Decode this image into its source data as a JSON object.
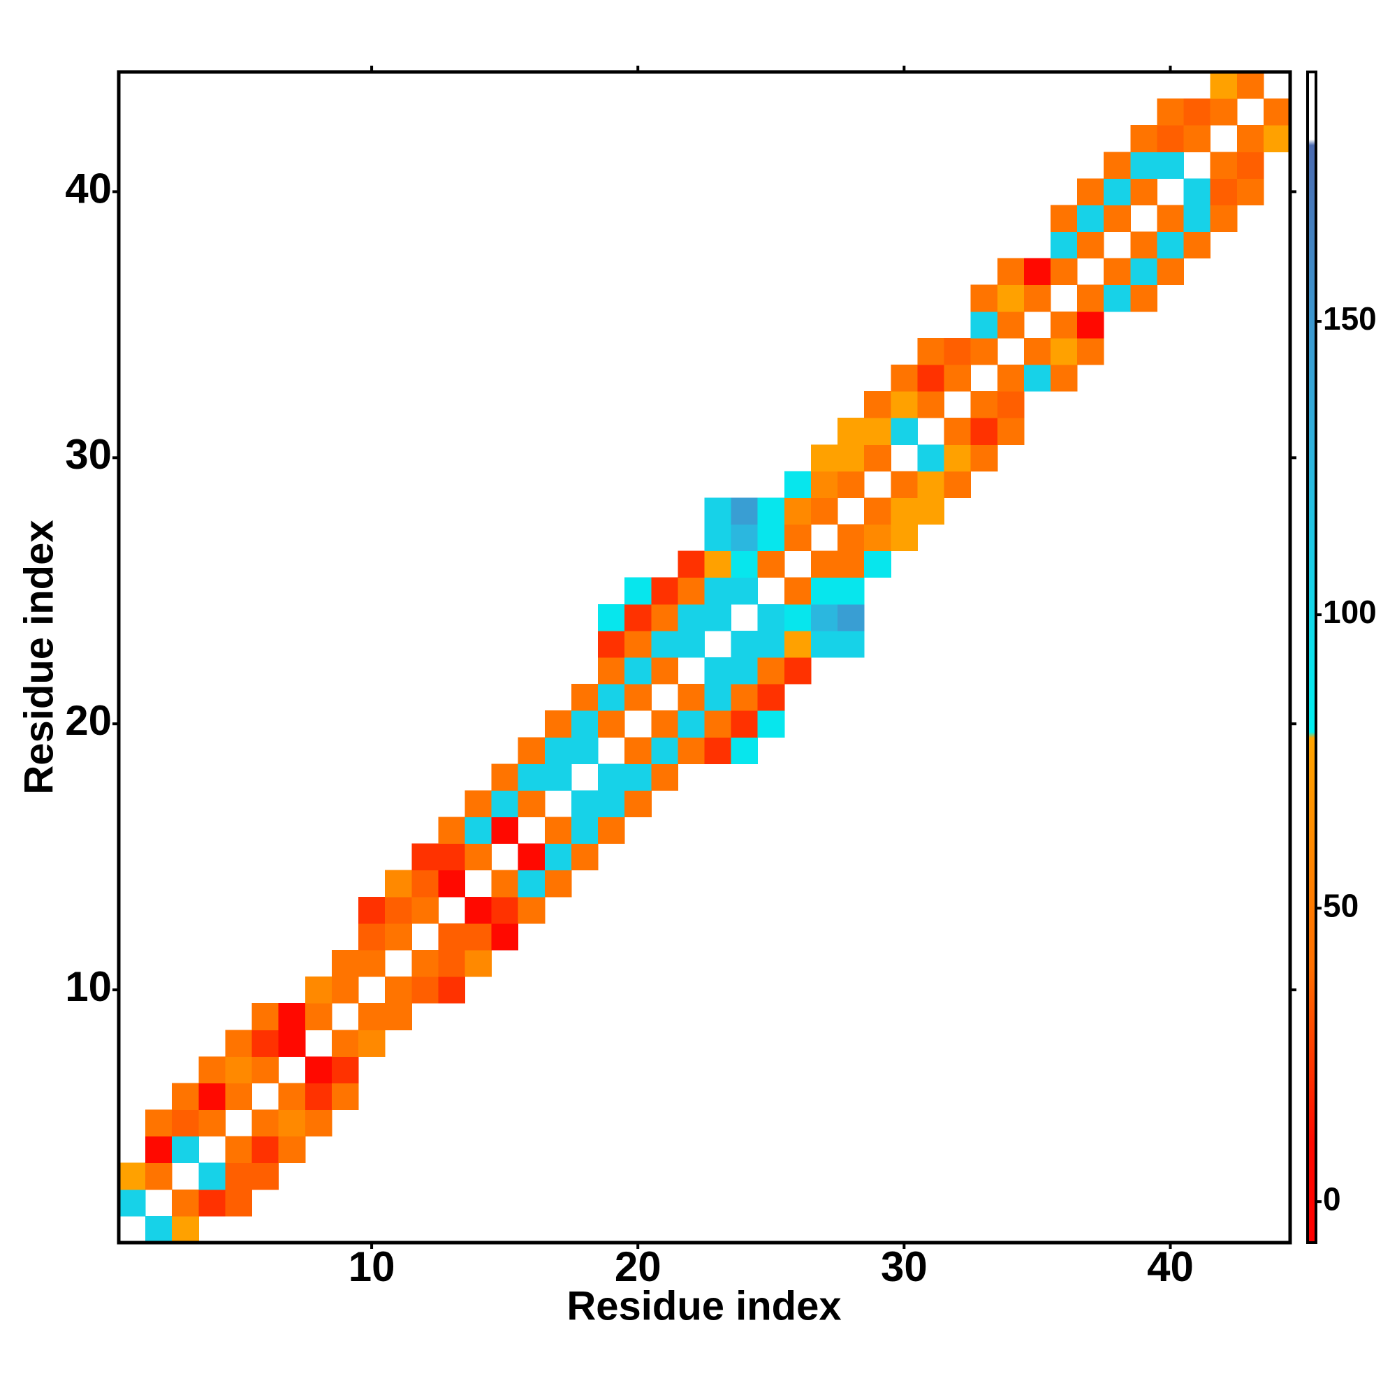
{
  "chart_data": {
    "type": "heatmap",
    "x_label": "Residue index",
    "y_label": "Residue index",
    "xlim": [
      0.5,
      44.5
    ],
    "ylim": [
      0.5,
      44.5
    ],
    "xticks": [
      10,
      20,
      30,
      40
    ],
    "yticks": [
      10,
      20,
      30,
      40
    ],
    "clim": [
      -7,
      192.5
    ],
    "cticks": [
      0,
      50,
      100,
      150
    ],
    "colorscale": [
      [
        -7,
        "#ff0000"
      ],
      [
        10,
        "#ff0a00"
      ],
      [
        25,
        "#ff3c00"
      ],
      [
        40,
        "#ff7000"
      ],
      [
        50,
        "#ff7a00"
      ],
      [
        65,
        "#ff9000"
      ],
      [
        79,
        "#ffa500"
      ],
      [
        80,
        "#00f0f0"
      ],
      [
        110,
        "#1ccce6"
      ],
      [
        130,
        "#30b0dc"
      ],
      [
        150,
        "#3c98d0"
      ],
      [
        180,
        "#4a6ab0"
      ],
      [
        181,
        "#ffffff"
      ],
      [
        192.5,
        "#ffffff"
      ]
    ],
    "rows": [
      {
        "y": 1,
        "x": [
          2,
          3
        ],
        "values": [
          105,
          76
        ]
      },
      {
        "y": 2,
        "x": [
          1,
          3,
          4,
          5
        ],
        "values": [
          105,
          44,
          22,
          35
        ]
      },
      {
        "y": 3,
        "x": [
          1,
          2,
          4,
          5,
          6
        ],
        "values": [
          76,
          44,
          105,
          35,
          35
        ]
      },
      {
        "y": 4,
        "x": [
          2,
          3,
          5,
          6,
          7
        ],
        "values": [
          8,
          105,
          44,
          22,
          44
        ]
      },
      {
        "y": 5,
        "x": [
          2,
          3,
          4,
          6,
          7,
          8
        ],
        "values": [
          44,
          35,
          44,
          44,
          60,
          44
        ]
      },
      {
        "y": 6,
        "x": [
          3,
          4,
          5,
          7,
          8,
          9
        ],
        "values": [
          44,
          8,
          44,
          44,
          22,
          44
        ]
      },
      {
        "y": 7,
        "x": [
          4,
          5,
          6,
          8,
          9
        ],
        "values": [
          44,
          60,
          44,
          8,
          22
        ]
      },
      {
        "y": 8,
        "x": [
          5,
          6,
          7,
          9,
          10
        ],
        "values": [
          44,
          22,
          8,
          44,
          60
        ]
      },
      {
        "y": 9,
        "x": [
          6,
          7,
          8,
          10,
          11
        ],
        "values": [
          44,
          8,
          44,
          44,
          44
        ]
      },
      {
        "y": 10,
        "x": [
          8,
          9,
          11,
          12,
          13
        ],
        "values": [
          60,
          44,
          44,
          35,
          22
        ]
      },
      {
        "y": 11,
        "x": [
          9,
          10,
          12,
          13,
          14
        ],
        "values": [
          44,
          44,
          44,
          35,
          60
        ]
      },
      {
        "y": 12,
        "x": [
          10,
          11,
          13,
          14,
          15
        ],
        "values": [
          35,
          44,
          35,
          35,
          8
        ]
      },
      {
        "y": 13,
        "x": [
          10,
          11,
          12,
          14,
          15,
          16
        ],
        "values": [
          22,
          35,
          44,
          8,
          22,
          44
        ]
      },
      {
        "y": 14,
        "x": [
          11,
          12,
          13,
          15,
          16,
          17
        ],
        "values": [
          60,
          35,
          8,
          44,
          105,
          44
        ]
      },
      {
        "y": 15,
        "x": [
          12,
          13,
          14,
          16,
          17,
          18
        ],
        "values": [
          22,
          22,
          44,
          8,
          105,
          44
        ]
      },
      {
        "y": 16,
        "x": [
          13,
          14,
          15,
          17,
          18,
          19
        ],
        "values": [
          44,
          105,
          8,
          44,
          105,
          44
        ]
      },
      {
        "y": 17,
        "x": [
          14,
          15,
          16,
          18,
          19,
          20
        ],
        "values": [
          44,
          105,
          44,
          105,
          105,
          44
        ]
      },
      {
        "y": 18,
        "x": [
          15,
          16,
          17,
          19,
          20,
          21
        ],
        "values": [
          44,
          105,
          105,
          105,
          105,
          44
        ]
      },
      {
        "y": 19,
        "x": [
          16,
          17,
          18,
          20,
          21,
          22,
          23,
          24
        ],
        "values": [
          44,
          105,
          105,
          44,
          105,
          44,
          22,
          88
        ]
      },
      {
        "y": 20,
        "x": [
          17,
          18,
          19,
          21,
          22,
          23,
          24,
          25
        ],
        "values": [
          44,
          105,
          44,
          44,
          105,
          44,
          22,
          88
        ]
      },
      {
        "y": 21,
        "x": [
          18,
          19,
          20,
          22,
          23,
          24,
          25
        ],
        "values": [
          44,
          105,
          44,
          44,
          105,
          44,
          22
        ]
      },
      {
        "y": 22,
        "x": [
          19,
          20,
          21,
          23,
          24,
          25,
          26
        ],
        "values": [
          44,
          105,
          44,
          105,
          105,
          44,
          22
        ]
      },
      {
        "y": 23,
        "x": [
          19,
          20,
          21,
          22,
          24,
          25,
          26,
          27,
          28
        ],
        "values": [
          22,
          44,
          105,
          105,
          105,
          105,
          76,
          105,
          105
        ]
      },
      {
        "y": 24,
        "x": [
          19,
          20,
          21,
          22,
          23,
          25,
          26,
          27,
          28
        ],
        "values": [
          88,
          22,
          44,
          105,
          105,
          105,
          88,
          125,
          145
        ]
      },
      {
        "y": 25,
        "x": [
          20,
          21,
          22,
          23,
          24,
          26,
          27,
          28
        ],
        "values": [
          88,
          22,
          44,
          105,
          105,
          44,
          88,
          88
        ]
      },
      {
        "y": 26,
        "x": [
          22,
          23,
          24,
          25,
          27,
          28,
          29
        ],
        "values": [
          22,
          76,
          88,
          44,
          44,
          44,
          88
        ]
      },
      {
        "y": 27,
        "x": [
          23,
          24,
          25,
          26,
          28,
          29,
          30
        ],
        "values": [
          105,
          125,
          88,
          44,
          44,
          60,
          76
        ]
      },
      {
        "y": 28,
        "x": [
          23,
          24,
          25,
          26,
          27,
          29,
          30,
          31
        ],
        "values": [
          105,
          145,
          88,
          60,
          44,
          44,
          76,
          76
        ]
      },
      {
        "y": 29,
        "x": [
          26,
          27,
          28,
          30,
          31,
          32
        ],
        "values": [
          88,
          60,
          44,
          44,
          76,
          44
        ]
      },
      {
        "y": 30,
        "x": [
          27,
          28,
          29,
          31,
          32,
          33
        ],
        "values": [
          76,
          76,
          44,
          105,
          76,
          44
        ]
      },
      {
        "y": 31,
        "x": [
          28,
          29,
          30,
          32,
          33,
          34
        ],
        "values": [
          76,
          76,
          105,
          44,
          22,
          44
        ]
      },
      {
        "y": 32,
        "x": [
          29,
          30,
          31,
          33,
          34
        ],
        "values": [
          44,
          76,
          44,
          44,
          35
        ]
      },
      {
        "y": 33,
        "x": [
          30,
          31,
          32,
          34,
          35,
          36
        ],
        "values": [
          44,
          22,
          44,
          44,
          105,
          44
        ]
      },
      {
        "y": 34,
        "x": [
          31,
          32,
          33,
          35,
          36,
          37
        ],
        "values": [
          44,
          35,
          44,
          44,
          76,
          44
        ]
      },
      {
        "y": 35,
        "x": [
          33,
          34,
          36,
          37
        ],
        "values": [
          105,
          44,
          44,
          8
        ]
      },
      {
        "y": 36,
        "x": [
          33,
          34,
          35,
          37,
          38,
          39
        ],
        "values": [
          44,
          76,
          44,
          44,
          105,
          44
        ]
      },
      {
        "y": 37,
        "x": [
          34,
          35,
          36,
          38,
          39,
          40
        ],
        "values": [
          44,
          8,
          44,
          44,
          105,
          44
        ]
      },
      {
        "y": 38,
        "x": [
          36,
          37,
          39,
          40,
          41
        ],
        "values": [
          105,
          44,
          44,
          105,
          44
        ]
      },
      {
        "y": 39,
        "x": [
          36,
          37,
          38,
          40,
          41,
          42
        ],
        "values": [
          44,
          105,
          44,
          44,
          105,
          44
        ]
      },
      {
        "y": 40,
        "x": [
          37,
          38,
          39,
          41,
          42,
          43
        ],
        "values": [
          44,
          105,
          44,
          105,
          35,
          44
        ]
      },
      {
        "y": 41,
        "x": [
          38,
          39,
          40,
          42,
          43
        ],
        "values": [
          44,
          105,
          105,
          44,
          35
        ]
      },
      {
        "y": 42,
        "x": [
          39,
          40,
          41,
          43,
          44
        ],
        "values": [
          44,
          35,
          44,
          44,
          76
        ]
      },
      {
        "y": 43,
        "x": [
          40,
          41,
          42,
          44
        ],
        "values": [
          44,
          35,
          44,
          44
        ]
      },
      {
        "y": 44,
        "x": [
          42,
          43
        ],
        "values": [
          76,
          44
        ]
      }
    ]
  }
}
